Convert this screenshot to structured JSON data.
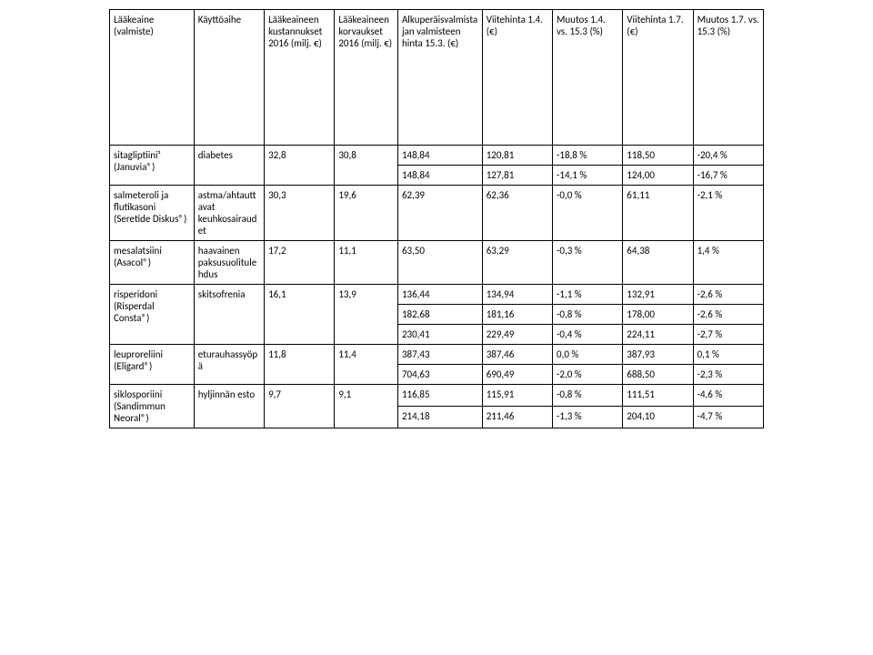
{
  "table": {
    "headers": [
      "Lääkeaine (valmiste)",
      "Käyttöaihe",
      "Lääkeaineen kustannukset 2016 (milj. €)",
      "Lääkeaineen korvaukset 2016 (milj. €)",
      "Alkuperäisvalmistajan valmisteen hinta 15.3. (€)",
      "Viitehinta 1.4. (€)",
      "Muutos 1.4. vs. 15.3 (%)",
      "Viitehinta 1.7. (€)",
      "Muutos 1.7. vs. 15.3 (%)"
    ],
    "groups": [
      {
        "drug": "sitagliptiini¹ (Januvia®)",
        "indication": "diabetes",
        "cost": "32,8",
        "reimb": "30,8",
        "rows": [
          {
            "orig": "148,84",
            "ref14": "120,81",
            "chg14": "-18,8 %",
            "ref17": "118,50",
            "chg17": "-20,4 %"
          },
          {
            "orig": "148,84",
            "ref14": "127,81",
            "chg14": "-14,1 %",
            "ref17": "124,00",
            "chg17": "-16,7 %"
          }
        ]
      },
      {
        "drug": "salmeteroli ja flutikasoni (Seretide Diskus®)",
        "indication": "astma/ahtauttavat keuhkosairaudet",
        "cost": "30,3",
        "reimb": "19,6",
        "rows": [
          {
            "orig": "62,39",
            "ref14": "62,36",
            "chg14": "-0,0 %",
            "ref17": "61,11",
            "chg17": "-2,1 %"
          }
        ]
      },
      {
        "drug": "mesalatsiini (Asacol®)",
        "indication": "haavainen paksusuolitulehdus",
        "cost": "17,2",
        "reimb": "11,1",
        "rows": [
          {
            "orig": "63,50",
            "ref14": "63,29",
            "chg14": "-0,3 %",
            "ref17": "64,38",
            "chg17": "1,4 %"
          }
        ]
      },
      {
        "drug": "risperidoni (Risperdal Consta®)",
        "indication": "skitsofrenia",
        "cost": "16,1",
        "reimb": "13,9",
        "rows": [
          {
            "orig": "136,44",
            "ref14": "134,94",
            "chg14": "-1,1 %",
            "ref17": "132,91",
            "chg17": "-2,6 %"
          },
          {
            "orig": "182,68",
            "ref14": "181,16",
            "chg14": "-0,8 %",
            "ref17": "178,00",
            "chg17": "-2,6 %"
          },
          {
            "orig": "230,41",
            "ref14": "229,49",
            "chg14": "-0,4 %",
            "ref17": "224,11",
            "chg17": "-2,7 %"
          }
        ]
      },
      {
        "drug": "leuproreliini (Eligard®)",
        "indication": "eturauhassyöpä",
        "cost": "11,8",
        "reimb": "11,4",
        "rows": [
          {
            "orig": "387,43",
            "ref14": "387,46",
            "chg14": "0,0 %",
            "ref17": "387,93",
            "chg17": "0,1 %"
          },
          {
            "orig": "704,63",
            "ref14": "690,49",
            "chg14": "-2,0 %",
            "ref17": "688,50",
            "chg17": "-2,3 %"
          }
        ]
      },
      {
        "drug": "siklosporiini (Sandimmun Neoral®)",
        "indication": "hyljinnän esto",
        "cost": "9,7",
        "reimb": "9,1",
        "rows": [
          {
            "orig": "116,85",
            "ref14": "115,91",
            "chg14": "-0,8 %",
            "ref17": "111,51",
            "chg17": "-4,6 %"
          },
          {
            "orig": "214,18",
            "ref14": "211,46",
            "chg14": "-1,3 %",
            "ref17": "204,10",
            "chg17": "-4,7 %"
          }
        ]
      }
    ]
  },
  "style": {
    "border_color": "#000000",
    "background_color": "#ffffff",
    "font_family": "Calibri, Arial, sans-serif",
    "font_size_pt": 8,
    "text_color": "#000000"
  }
}
